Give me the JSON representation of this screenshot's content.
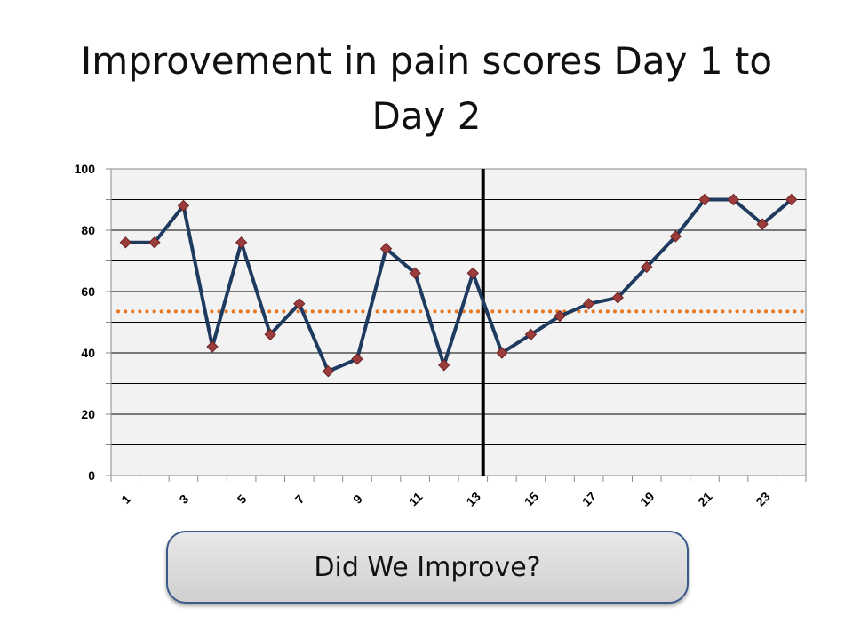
{
  "title": "Improvement in pain scores Day 1 to Day 2",
  "button_label": "Did We Improve?",
  "colors": {
    "line": "#1f3a5f",
    "marker": "#9b3b3b",
    "mean_line": "#e87722",
    "divider": "#000000",
    "plot_bg": "#f2f2f2"
  },
  "chart_data": {
    "type": "line",
    "title": "Improvement in pain scores Day 1 to Day 2",
    "x": [
      1,
      2,
      3,
      4,
      5,
      6,
      7,
      8,
      9,
      10,
      11,
      12,
      13,
      14,
      15,
      16,
      17,
      18,
      19,
      20,
      21,
      22,
      23,
      24
    ],
    "x_tick_labels": [
      "1",
      "3",
      "5",
      "7",
      "9",
      "11",
      "13",
      "15",
      "17",
      "19",
      "21",
      "23"
    ],
    "y_tick_labels": [
      "0",
      "20",
      "40",
      "60",
      "80",
      "100"
    ],
    "series": [
      {
        "values": [
          76,
          76,
          88,
          42,
          76,
          46,
          56,
          34,
          38,
          74,
          66,
          36,
          66,
          40,
          46,
          52,
          56,
          58,
          68,
          78,
          90,
          90,
          82,
          90
        ]
      }
    ],
    "reference_line": 53.5,
    "divider_after_x": 13,
    "ylim": [
      0,
      100
    ],
    "grid": true,
    "xlabel": "",
    "ylabel": ""
  }
}
